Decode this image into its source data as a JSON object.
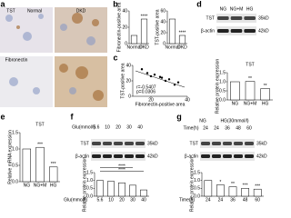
{
  "panels": {
    "letters": [
      "a",
      "b",
      "c",
      "d",
      "e",
      "f",
      "g"
    ],
    "a": {
      "row_labels": [
        "TST",
        "Fibronectin"
      ],
      "col_labels": [
        "Normal",
        "DKD"
      ]
    },
    "d": {
      "lanes": [
        "NG",
        "NG+M",
        "HG"
      ],
      "bands": [
        {
          "name": "TST",
          "size": "35kD"
        },
        {
          "name": "β-actin",
          "size": "42kD"
        }
      ]
    },
    "f": {
      "header": "Glu(mmol/l)",
      "lanes": [
        "5.6",
        "10",
        "20",
        "30",
        "40"
      ],
      "bands": [
        {
          "name": "TST",
          "size": "35kD"
        },
        {
          "name": "β-actin",
          "size": "42kD"
        }
      ]
    },
    "g": {
      "groups": [
        "NG",
        "HG(30mmol/l)"
      ],
      "header": "Time(h)",
      "lanes": [
        "24",
        "24",
        "36",
        "48",
        "60"
      ],
      "bands": [
        {
          "name": "TST",
          "size": "35kD"
        },
        {
          "name": "β-actin",
          "size": "42kD"
        }
      ]
    }
  },
  "chart_data": [
    {
      "type": "bar",
      "y_label": "Fibronectin-positive area",
      "categories": [
        "Normal",
        "DKD"
      ],
      "values": [
        10,
        30
      ],
      "ylim": [
        0,
        40
      ],
      "yticks": [
        0,
        20,
        40
      ],
      "color": "#ffffff",
      "annotations": [
        "****"
      ]
    },
    {
      "type": "bar",
      "y_label": "TST-positive area",
      "categories": [
        "Normal",
        "DKD"
      ],
      "values": [
        45,
        15
      ],
      "ylim": [
        0,
        60
      ],
      "yticks": [
        0,
        20,
        40,
        60
      ],
      "color": "#ffffff",
      "annotations": [
        "****"
      ]
    },
    {
      "type": "scatter",
      "x_label": "Fibronectin-positive area",
      "y_label": "TST-positive area",
      "x": [
        15,
        18,
        20,
        22,
        25,
        26,
        28,
        30,
        33,
        35
      ],
      "values": [
        35,
        30,
        26,
        28,
        25,
        24,
        20,
        22,
        15,
        18
      ],
      "xlim": [
        10,
        40
      ],
      "xticks": [
        20,
        40
      ],
      "ylim": [
        0,
        40
      ],
      "yticks": [
        0,
        20,
        40
      ],
      "color": "#000000",
      "annotations": [
        "r=-0.5407",
        "p=0.0306"
      ]
    },
    {
      "type": "bar",
      "title": "TST",
      "y_label": "Relative protein expression",
      "categories": [
        "NG",
        "NG+M",
        "HG"
      ],
      "values": [
        1,
        1.02,
        0.62
      ],
      "ylim": [
        0,
        1.5
      ],
      "yticks": [
        {
          "value": 0,
          "label": "0.0"
        },
        0.5,
        {
          "value": 1,
          "label": "1.0"
        },
        1.5
      ],
      "color": "#ffffff",
      "annotations": [
        "**",
        "**"
      ]
    },
    {
      "type": "bar",
      "title": "TST",
      "y_label": "Relative mRNA expression",
      "categories": [
        "NG",
        "NG+M",
        "HG"
      ],
      "values": [
        1,
        1.05,
        0.45
      ],
      "ylim": [
        0,
        1.5
      ],
      "yticks": [
        {
          "value": 0,
          "label": "0.0"
        },
        0.5,
        {
          "value": 1,
          "label": "1.0"
        },
        1.5
      ],
      "color": "#ffffff",
      "annotations": [
        "***",
        "***"
      ]
    },
    {
      "type": "bar",
      "x_label": "Glu(mmol/l)",
      "y_label": "Relative protein expression",
      "categories": [
        "5.6",
        "10",
        "20",
        "30",
        "40"
      ],
      "values": [
        1,
        0.95,
        0.85,
        0.7,
        0.4
      ],
      "ylim": [
        0,
        1.5
      ],
      "yticks": [
        {
          "value": 0,
          "label": "0.0"
        },
        0.5,
        {
          "value": 1,
          "label": "1.0"
        },
        1.5
      ],
      "color": "#ffffff",
      "annotations": [
        "****",
        "****"
      ]
    },
    {
      "type": "bar",
      "x_label": "Time(h)",
      "y_label": "Relative protein expression",
      "categories": [
        "24",
        "24",
        "36",
        "48",
        "60"
      ],
      "values": [
        1,
        0.72,
        0.6,
        0.5,
        0.45
      ],
      "ylim": [
        0,
        1.5
      ],
      "yticks": [
        {
          "value": 0,
          "label": "0.0"
        },
        0.5,
        {
          "value": 1,
          "label": "1.0"
        },
        1.5
      ],
      "color": "#ffffff",
      "annotations": [
        "*",
        "**",
        "***",
        "***"
      ]
    }
  ]
}
